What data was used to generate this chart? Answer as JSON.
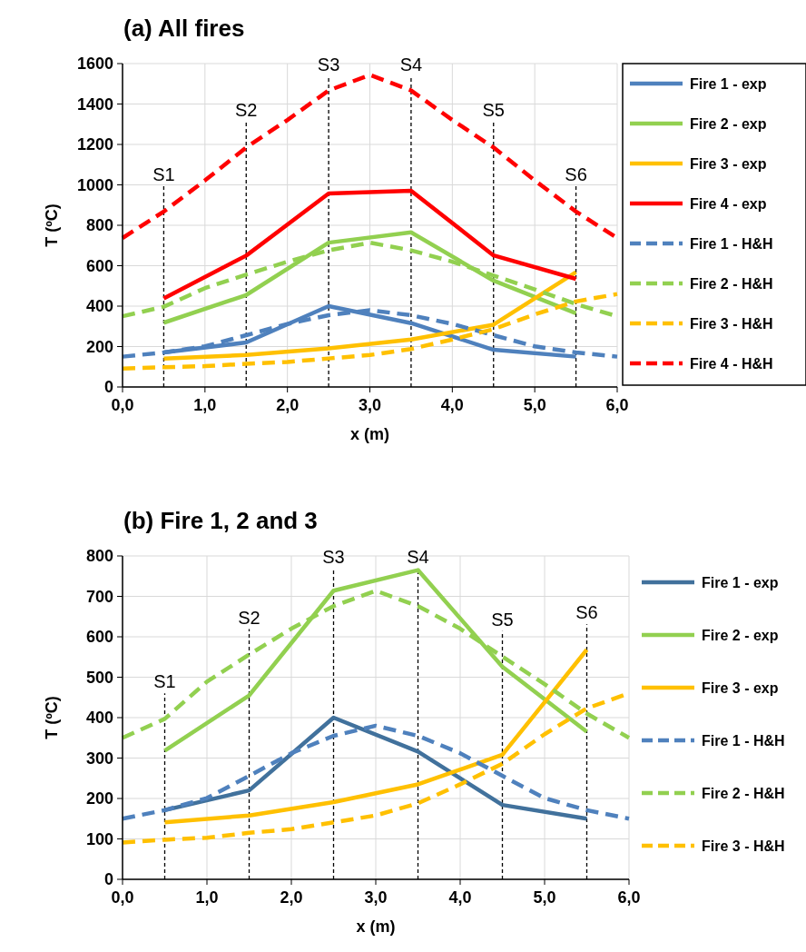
{
  "chart_data": [
    {
      "type": "line",
      "title": "(a) All fires",
      "xlabel": "x (m)",
      "ylabel": "T (ºC)",
      "xlim": [
        0,
        6
      ],
      "ylim": [
        0,
        1600
      ],
      "xticks": [
        {
          "value": 0,
          "label": "0,0"
        },
        {
          "value": 1,
          "label": "1,0"
        },
        {
          "value": 2,
          "label": "2,0"
        },
        {
          "value": 3,
          "label": "3,0"
        },
        {
          "value": 4,
          "label": "4,0"
        },
        {
          "value": 5,
          "label": "5,0"
        },
        {
          "value": 6,
          "label": "6,0"
        }
      ],
      "yticks": [
        0,
        200,
        400,
        600,
        800,
        1000,
        1200,
        1400,
        1600
      ],
      "grid": true,
      "legend": "right",
      "marker": "none",
      "ref_lines": [
        {
          "axis": "x",
          "value": 0.5,
          "label": "S1",
          "line_style": "dashed",
          "color": "#000000"
        },
        {
          "axis": "x",
          "value": 1.5,
          "label": "S2",
          "line_style": "dashed",
          "color": "#000000"
        },
        {
          "axis": "x",
          "value": 2.5,
          "label": "S3",
          "line_style": "dashed",
          "color": "#000000"
        },
        {
          "axis": "x",
          "value": 3.5,
          "label": "S4",
          "line_style": "dashed",
          "color": "#000000"
        },
        {
          "axis": "x",
          "value": 4.5,
          "label": "S5",
          "line_style": "dashed",
          "color": "#000000"
        },
        {
          "axis": "x",
          "value": 5.5,
          "label": "S6",
          "line_style": "dashed",
          "color": "#000000"
        }
      ],
      "series": [
        {
          "name": "Fire 1 - exp",
          "color": "#4f81bd",
          "line_style": "solid",
          "x": [
            0.5,
            1.5,
            2.5,
            3.5,
            4.5,
            5.5
          ],
          "values": [
            171,
            220,
            400,
            316,
            184,
            150
          ]
        },
        {
          "name": "Fire 2 - exp",
          "color": "#92d050",
          "line_style": "solid",
          "x": [
            0.5,
            1.5,
            2.5,
            3.5,
            4.5,
            5.5
          ],
          "values": [
            318,
            455,
            714,
            765,
            526,
            365
          ]
        },
        {
          "name": "Fire 3 - exp",
          "color": "#ffc000",
          "line_style": "solid",
          "x": [
            0.5,
            1.5,
            2.5,
            3.5,
            4.5,
            5.5
          ],
          "values": [
            141,
            158,
            191,
            235,
            308,
            568
          ]
        },
        {
          "name": "Fire 4 - exp",
          "color": "#ff0000",
          "line_style": "solid",
          "x": [
            0.5,
            1.5,
            2.5,
            3.5,
            4.5,
            5.5
          ],
          "values": [
            438,
            650,
            957,
            971,
            651,
            535
          ]
        },
        {
          "name": "Fire 1 - H&H",
          "color": "#4f81bd",
          "line_style": "dashed",
          "x": [
            0,
            0.5,
            1,
            1.5,
            2,
            2.5,
            3,
            3.5,
            4,
            4.5,
            5,
            5.5,
            6
          ],
          "values": [
            150,
            171,
            201,
            256,
            312,
            355,
            380,
            355,
            312,
            256,
            201,
            171,
            150
          ]
        },
        {
          "name": "Fire 2 - H&H",
          "color": "#92d050",
          "line_style": "dashed",
          "x": [
            0,
            0.5,
            1,
            1.5,
            2,
            2.5,
            3,
            3.5,
            4,
            4.5,
            5,
            5.5,
            6
          ],
          "values": [
            350,
            397,
            489,
            556,
            620,
            676,
            714,
            676,
            620,
            551,
            483,
            410,
            350
          ]
        },
        {
          "name": "Fire 3 - H&H",
          "color": "#ffc000",
          "line_style": "dashed",
          "x": [
            0,
            0.5,
            1,
            1.5,
            2,
            2.5,
            3,
            3.5,
            4,
            4.5,
            5,
            5.5,
            6
          ],
          "values": [
            91,
            98,
            103,
            115,
            124,
            141,
            158,
            188,
            235,
            286,
            359,
            423,
            460
          ]
        },
        {
          "name": "Fire 4 - H&H",
          "color": "#ff0000",
          "line_style": "dashed",
          "x": [
            0,
            0.5,
            1,
            1.5,
            2,
            2.5,
            3,
            3.5,
            4,
            4.5,
            5,
            5.5,
            6
          ],
          "values": [
            737,
            868,
            1022,
            1185,
            1321,
            1467,
            1544,
            1467,
            1321,
            1185,
            1022,
            868,
            737
          ]
        }
      ]
    },
    {
      "type": "line",
      "title": "(b) Fire 1, 2 and 3",
      "xlabel": "x (m)",
      "ylabel": "T (ºC)",
      "xlim": [
        0,
        6
      ],
      "ylim": [
        0,
        800
      ],
      "xticks": [
        {
          "value": 0,
          "label": "0,0"
        },
        {
          "value": 1,
          "label": "1,0"
        },
        {
          "value": 2,
          "label": "2,0"
        },
        {
          "value": 3,
          "label": "3,0"
        },
        {
          "value": 4,
          "label": "4,0"
        },
        {
          "value": 5,
          "label": "5,0"
        },
        {
          "value": 6,
          "label": "6,0"
        }
      ],
      "yticks": [
        0,
        100,
        200,
        300,
        400,
        500,
        600,
        700,
        800
      ],
      "grid": true,
      "legend": "right",
      "marker": "none",
      "ref_lines": [
        {
          "axis": "x",
          "value": 0.5,
          "label": "S1",
          "line_style": "dashed",
          "color": "#000000"
        },
        {
          "axis": "x",
          "value": 1.5,
          "label": "S2",
          "line_style": "dashed",
          "color": "#000000"
        },
        {
          "axis": "x",
          "value": 2.5,
          "label": "S3",
          "line_style": "dashed",
          "color": "#000000"
        },
        {
          "axis": "x",
          "value": 3.5,
          "label": "S4",
          "line_style": "dashed",
          "color": "#000000"
        },
        {
          "axis": "x",
          "value": 4.5,
          "label": "S5",
          "line_style": "dashed",
          "color": "#000000"
        },
        {
          "axis": "x",
          "value": 5.5,
          "label": "S6",
          "line_style": "dashed",
          "color": "#000000"
        }
      ],
      "series": [
        {
          "name": "Fire 1 - exp",
          "color": "#41719c",
          "line_style": "solid",
          "x": [
            0.5,
            1.5,
            2.5,
            3.5,
            4.5,
            5.5
          ],
          "values": [
            171,
            220,
            400,
            316,
            184,
            150
          ]
        },
        {
          "name": "Fire 2 - exp",
          "color": "#92d050",
          "line_style": "solid",
          "x": [
            0.5,
            1.5,
            2.5,
            3.5,
            4.5,
            5.5
          ],
          "values": [
            318,
            455,
            714,
            765,
            526,
            365
          ]
        },
        {
          "name": "Fire 3 - exp",
          "color": "#ffc000",
          "line_style": "solid",
          "x": [
            0.5,
            1.5,
            2.5,
            3.5,
            4.5,
            5.5
          ],
          "values": [
            141,
            158,
            191,
            235,
            308,
            568
          ]
        },
        {
          "name": "Fire 1 - H&H",
          "color": "#4f81bd",
          "line_style": "dashed",
          "x": [
            0,
            0.5,
            1,
            1.5,
            2,
            2.5,
            3,
            3.5,
            4,
            4.5,
            5,
            5.5,
            6
          ],
          "values": [
            150,
            171,
            201,
            256,
            312,
            355,
            380,
            355,
            312,
            256,
            201,
            171,
            150
          ]
        },
        {
          "name": "Fire 2 - H&H",
          "color": "#92d050",
          "line_style": "dashed",
          "x": [
            0,
            0.5,
            1,
            1.5,
            2,
            2.5,
            3,
            3.5,
            4,
            4.5,
            5,
            5.5,
            6
          ],
          "values": [
            350,
            397,
            489,
            556,
            620,
            676,
            714,
            676,
            620,
            551,
            483,
            410,
            350
          ]
        },
        {
          "name": "Fire 3 - H&H",
          "color": "#ffc000",
          "line_style": "dashed",
          "x": [
            0,
            0.5,
            1,
            1.5,
            2,
            2.5,
            3,
            3.5,
            4,
            4.5,
            5,
            5.5,
            6
          ],
          "values": [
            91,
            98,
            103,
            115,
            124,
            141,
            158,
            188,
            235,
            286,
            359,
            423,
            460
          ]
        }
      ]
    }
  ]
}
